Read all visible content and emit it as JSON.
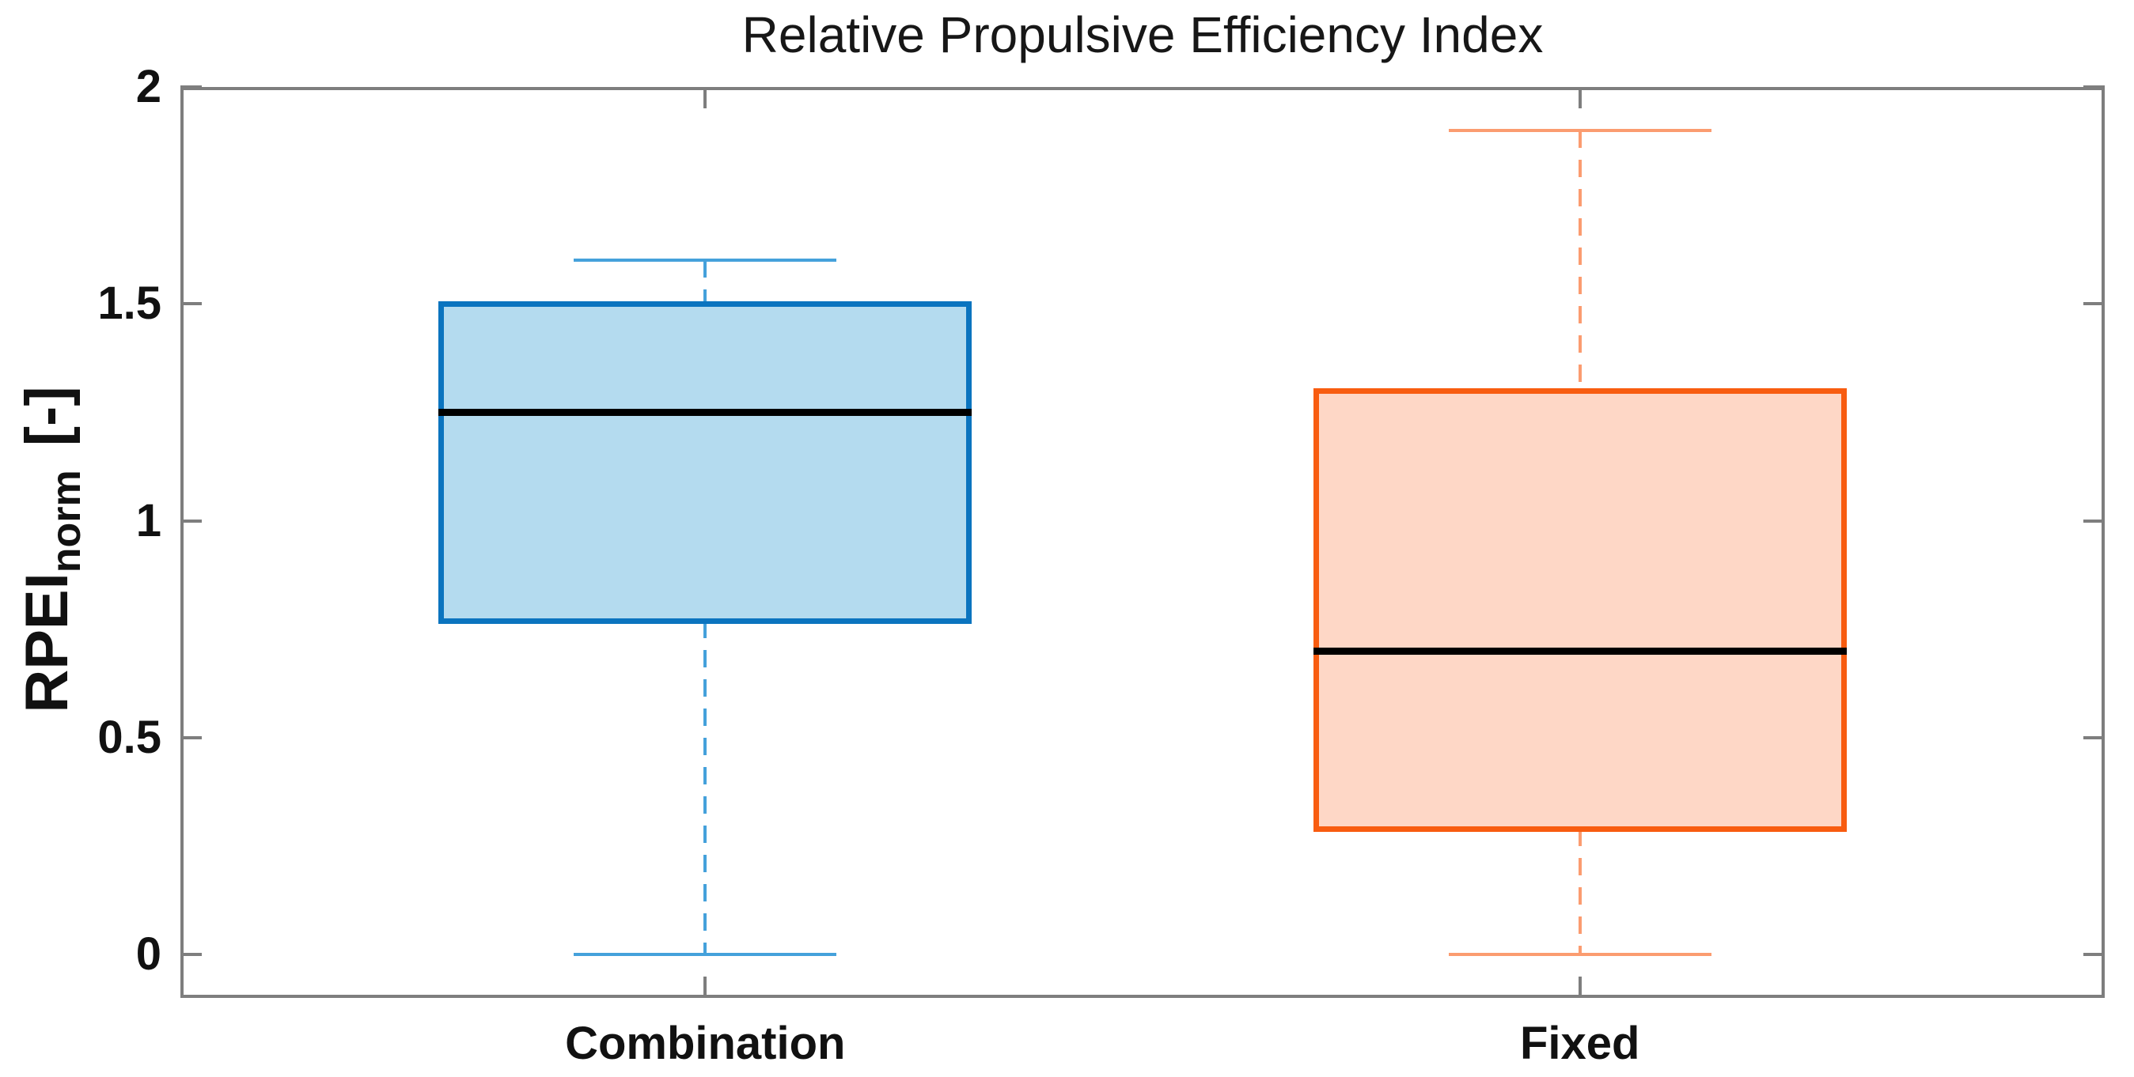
{
  "chart_data": {
    "type": "boxplot",
    "title": "Relative Propulsive Efficiency Index",
    "ylabel": {
      "main": "RPEI",
      "sub": "norm",
      "units": "[-]"
    },
    "xlabel": "",
    "ylim": [
      -0.1,
      2.0
    ],
    "xlim": [
      0.4,
      2.6
    ],
    "yticks": [
      0,
      0.5,
      1,
      1.5,
      2
    ],
    "ytick_labels": [
      "0",
      "0.5",
      "1",
      "1.5",
      "2"
    ],
    "categories": [
      "Combination",
      "Fixed"
    ],
    "series": [
      {
        "name": "Combination",
        "position": 1,
        "whisker_low": 0.0,
        "q1": 0.77,
        "median": 1.25,
        "q3": 1.5,
        "whisker_high": 1.6,
        "box_edge_color": "#0B74BF",
        "box_fill_color": "#B4DBEF",
        "whisker_color": "#45A1DB",
        "median_color": "#000000"
      },
      {
        "name": "Fixed",
        "position": 2,
        "whisker_low": 0.0,
        "q1": 0.29,
        "median": 0.7,
        "q3": 1.3,
        "whisker_high": 1.9,
        "box_edge_color": "#F85C10",
        "box_fill_color": "#FED7C6",
        "whisker_color": "#FB9C70",
        "median_color": "#000000"
      }
    ],
    "box_width_units": 0.61,
    "cap_width_units": 0.3,
    "axis_color": "#7E7E7E",
    "grid": false,
    "legend": false,
    "box_style": "framed-all-sides-ticks-inward"
  }
}
